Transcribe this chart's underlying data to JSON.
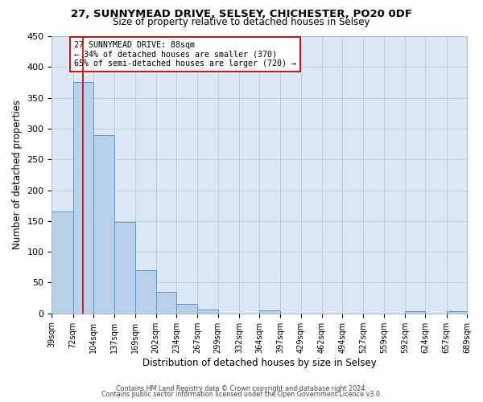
{
  "title": "27, SUNNYMEAD DRIVE, SELSEY, CHICHESTER, PO20 0DF",
  "subtitle": "Size of property relative to detached houses in Selsey",
  "xlabel": "Distribution of detached houses by size in Selsey",
  "ylabel": "Number of detached properties",
  "bar_edges": [
    39,
    72,
    104,
    137,
    169,
    202,
    234,
    267,
    299,
    332,
    364,
    397,
    429,
    462,
    494,
    527,
    559,
    592,
    624,
    657,
    689
  ],
  "bar_heights": [
    165,
    375,
    290,
    148,
    70,
    35,
    15,
    6,
    0,
    0,
    5,
    0,
    0,
    0,
    0,
    0,
    0,
    4,
    0,
    4
  ],
  "bar_color": "#b8d0ea",
  "bar_edge_color": "#5b9bd5",
  "property_line_x": 88,
  "property_line_color": "#cc0000",
  "annotation_title": "27 SUNNYMEAD DRIVE: 88sqm",
  "annotation_line1": "← 34% of detached houses are smaller (370)",
  "annotation_line2": "65% of semi-detached houses are larger (720) →",
  "annotation_box_color": "#ffffff",
  "annotation_box_edge": "#cc0000",
  "ylim": [
    0,
    450
  ],
  "yticks": [
    0,
    50,
    100,
    150,
    200,
    250,
    300,
    350,
    400,
    450
  ],
  "background_color": "#ffffff",
  "axes_bg_color": "#dde8f4",
  "grid_color": "#c0cfdf",
  "footer_line1": "Contains HM Land Registry data © Crown copyright and database right 2024.",
  "footer_line2": "Contains public sector information licensed under the Open Government Licence v3.0."
}
